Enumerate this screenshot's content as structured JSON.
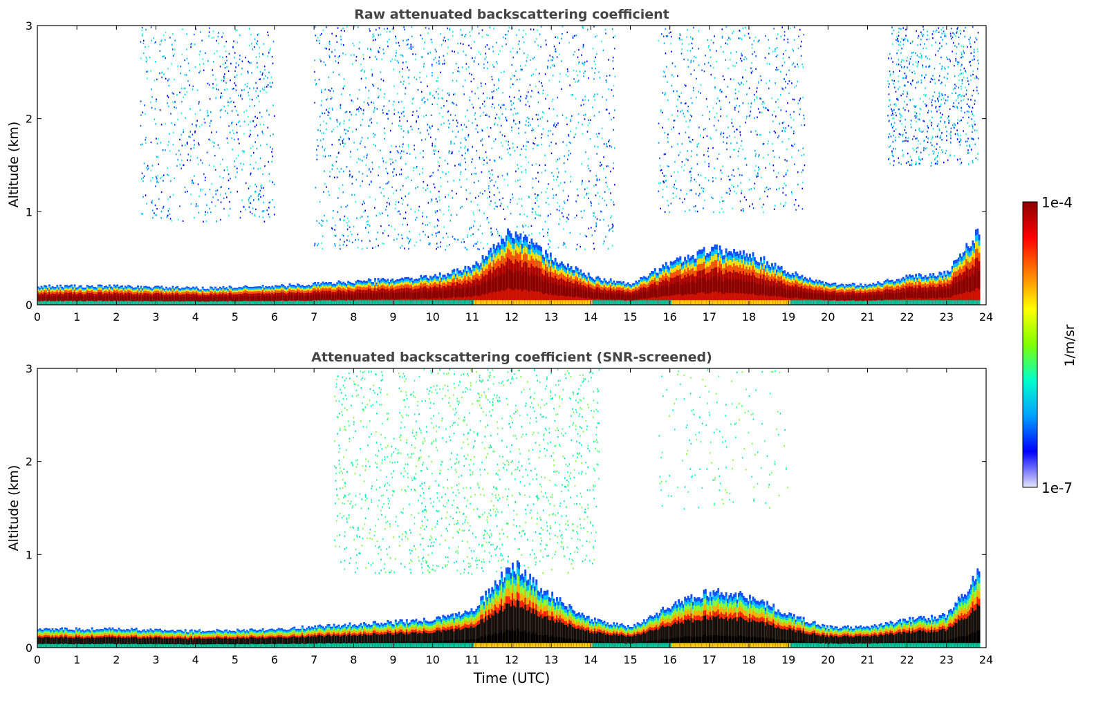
{
  "chart_data": [
    {
      "type": "heatmap",
      "title": "Raw attenuated backscattering coefficient",
      "xlabel": "",
      "ylabel": "Altitude (km)",
      "xlim": [
        0,
        24
      ],
      "ylim": [
        0,
        3
      ],
      "xticks": [
        "0",
        "1",
        "2",
        "3",
        "4",
        "5",
        "6",
        "7",
        "8",
        "9",
        "10",
        "11",
        "12",
        "13",
        "14",
        "15",
        "16",
        "17",
        "18",
        "19",
        "20",
        "21",
        "22",
        "23",
        "24"
      ],
      "yticks": [
        "0",
        "1",
        "2",
        "3"
      ],
      "layer_top_km": [
        [
          0,
          0.2
        ],
        [
          2,
          0.2
        ],
        [
          4,
          0.18
        ],
        [
          6,
          0.2
        ],
        [
          8,
          0.25
        ],
        [
          10,
          0.3
        ],
        [
          11,
          0.4
        ],
        [
          12,
          0.8
        ],
        [
          13,
          0.5
        ],
        [
          14,
          0.3
        ],
        [
          15,
          0.22
        ],
        [
          16,
          0.45
        ],
        [
          17,
          0.6
        ],
        [
          18,
          0.55
        ],
        [
          19,
          0.35
        ],
        [
          20,
          0.22
        ],
        [
          21,
          0.22
        ],
        [
          22,
          0.3
        ],
        [
          23,
          0.35
        ],
        [
          23.8,
          0.8
        ]
      ],
      "noise_regions": [
        {
          "x": [
            2.6,
            6
          ],
          "alt_km": [
            0.9,
            3
          ],
          "level": "low"
        },
        {
          "x": [
            7,
            14.6
          ],
          "alt_km": [
            0.6,
            3
          ],
          "level": "high"
        },
        {
          "x": [
            15.7,
            19.4
          ],
          "alt_km": [
            1,
            3
          ],
          "level": "low"
        },
        {
          "x": [
            21.5,
            23.8
          ],
          "alt_km": [
            1.5,
            3
          ],
          "level": "low"
        }
      ]
    },
    {
      "type": "heatmap",
      "title": "Attenuated backscattering coefficient (SNR-screened)",
      "xlabel": "Time (UTC)",
      "ylabel": "Altitude (km)",
      "xlim": [
        0,
        24
      ],
      "ylim": [
        0,
        3
      ],
      "xticks": [
        "0",
        "1",
        "2",
        "3",
        "4",
        "5",
        "6",
        "7",
        "8",
        "9",
        "10",
        "11",
        "12",
        "13",
        "14",
        "15",
        "16",
        "17",
        "18",
        "19",
        "20",
        "21",
        "22",
        "23",
        "24"
      ],
      "yticks": [
        "0",
        "1",
        "2",
        "3"
      ],
      "layer_top_km": [
        [
          0,
          0.2
        ],
        [
          2,
          0.2
        ],
        [
          4,
          0.18
        ],
        [
          6,
          0.2
        ],
        [
          8,
          0.25
        ],
        [
          10,
          0.3
        ],
        [
          11,
          0.4
        ],
        [
          12,
          0.9
        ],
        [
          13,
          0.55
        ],
        [
          14,
          0.3
        ],
        [
          15,
          0.22
        ],
        [
          16,
          0.45
        ],
        [
          17,
          0.6
        ],
        [
          18,
          0.55
        ],
        [
          19,
          0.35
        ],
        [
          20,
          0.22
        ],
        [
          21,
          0.22
        ],
        [
          22,
          0.3
        ],
        [
          23,
          0.35
        ],
        [
          23.8,
          0.8
        ]
      ],
      "noise_regions": [
        {
          "x": [
            7.5,
            14.2
          ],
          "alt_km": [
            0.8,
            3
          ],
          "level": "screened"
        },
        {
          "x": [
            15.7,
            19
          ],
          "alt_km": [
            1.5,
            3
          ],
          "level": "sparse"
        }
      ]
    }
  ],
  "colorbar": {
    "label": "1/m/sr",
    "max_label": "1e-4",
    "min_label": "1e-7",
    "colormap": [
      "#e6e6fa",
      "#0000ff",
      "#00a0ff",
      "#00ffcc",
      "#7fff00",
      "#ffff00",
      "#ff7f00",
      "#ff0000",
      "#8b0000"
    ]
  }
}
